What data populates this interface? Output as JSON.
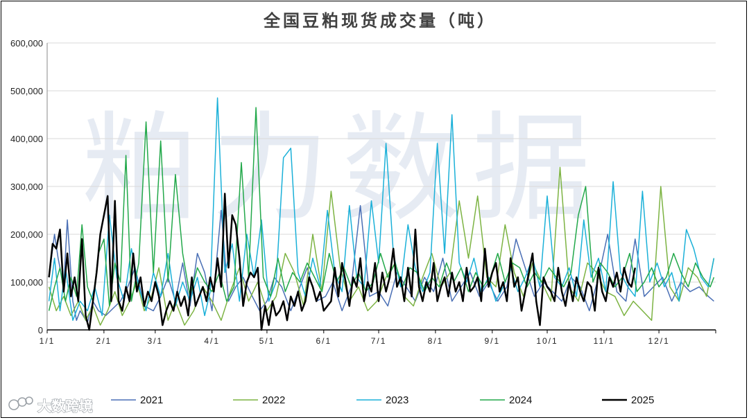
{
  "watermark": "粕力数据",
  "logo_text": "大数跨境",
  "chart_data": {
    "type": "line",
    "title": "全国豆粕现货成交量（吨）",
    "xlabel": "",
    "ylabel": "",
    "ylim": [
      0,
      600000
    ],
    "y_ticks": [
      "0",
      "100,000",
      "200,000",
      "300,000",
      "400,000",
      "500,000",
      "600,000"
    ],
    "x_range_days": [
      0,
      365
    ],
    "x_ticks": [
      {
        "label": "1/1",
        "day": 0
      },
      {
        "label": "2/1",
        "day": 31
      },
      {
        "label": "3/1",
        "day": 59
      },
      {
        "label": "4/1",
        "day": 90
      },
      {
        "label": "5/1",
        "day": 120
      },
      {
        "label": "6/1",
        "day": 151
      },
      {
        "label": "7/1",
        "day": 181
      },
      {
        "label": "8/1",
        "day": 212
      },
      {
        "label": "9/1",
        "day": 243
      },
      {
        "label": "10/1",
        "day": 273
      },
      {
        "label": "11/1",
        "day": 304
      },
      {
        "label": "12/1",
        "day": 334
      }
    ],
    "grid": true,
    "legend_position": "bottom",
    "series": [
      {
        "name": "2021",
        "color": "#4a6fb5",
        "width": 1.5,
        "x": [
          1,
          4,
          6,
          9,
          11,
          14,
          16,
          18,
          22,
          25,
          28,
          32,
          36,
          40,
          44,
          48,
          53,
          58,
          62,
          66,
          70,
          74,
          78,
          82,
          86,
          90,
          95,
          99,
          103,
          107,
          112,
          116,
          120,
          124,
          128,
          133,
          137,
          142,
          147,
          152,
          156,
          161,
          166,
          171,
          176,
          181,
          186,
          191,
          196,
          201,
          206,
          211,
          216,
          221,
          226,
          231,
          236,
          241,
          246,
          251,
          256,
          261,
          266,
          271,
          276,
          281,
          286,
          291,
          296,
          301,
          306,
          311,
          316,
          321,
          326,
          331,
          336,
          341,
          346,
          351,
          356,
          361,
          364
        ],
        "y": [
          110000,
          200000,
          150000,
          90000,
          230000,
          60000,
          20000,
          40000,
          15000,
          60000,
          40000,
          30000,
          45000,
          60000,
          90000,
          130000,
          50000,
          40000,
          70000,
          110000,
          60000,
          140000,
          50000,
          160000,
          120000,
          40000,
          250000,
          60000,
          90000,
          110000,
          70000,
          40000,
          60000,
          110000,
          90000,
          40000,
          80000,
          130000,
          60000,
          70000,
          100000,
          40000,
          90000,
          260000,
          70000,
          80000,
          50000,
          120000,
          90000,
          60000,
          110000,
          80000,
          150000,
          60000,
          90000,
          120000,
          70000,
          100000,
          60000,
          90000,
          190000,
          130000,
          70000,
          100000,
          80000,
          60000,
          110000,
          90000,
          40000,
          110000,
          200000,
          80000,
          60000,
          190000,
          70000,
          90000,
          110000,
          60000,
          100000,
          80000,
          90000,
          70000,
          60000
        ]
      },
      {
        "name": "2022",
        "color": "#7cb342",
        "width": 1.5,
        "x": [
          1,
          5,
          9,
          13,
          17,
          21,
          25,
          29,
          33,
          37,
          41,
          45,
          49,
          53,
          57,
          61,
          66,
          70,
          75,
          80,
          85,
          90,
          95,
          100,
          105,
          110,
          115,
          120,
          125,
          130,
          135,
          140,
          145,
          150,
          155,
          160,
          165,
          170,
          175,
          180,
          185,
          190,
          195,
          200,
          205,
          210,
          215,
          220,
          225,
          230,
          235,
          240,
          245,
          250,
          255,
          260,
          265,
          270,
          275,
          280,
          285,
          290,
          295,
          300,
          305,
          310,
          315,
          320,
          325,
          330,
          335,
          340,
          345,
          350,
          355,
          360,
          364
        ],
        "y": [
          90000,
          40000,
          70000,
          30000,
          60000,
          20000,
          50000,
          10000,
          40000,
          80000,
          30000,
          60000,
          100000,
          40000,
          70000,
          130000,
          20000,
          60000,
          10000,
          40000,
          90000,
          60000,
          20000,
          80000,
          130000,
          60000,
          100000,
          40000,
          70000,
          160000,
          120000,
          50000,
          200000,
          80000,
          290000,
          130000,
          60000,
          90000,
          40000,
          60000,
          110000,
          140000,
          70000,
          50000,
          110000,
          160000,
          90000,
          120000,
          270000,
          150000,
          280000,
          110000,
          90000,
          220000,
          120000,
          70000,
          140000,
          100000,
          60000,
          340000,
          90000,
          60000,
          140000,
          120000,
          80000,
          70000,
          30000,
          60000,
          40000,
          20000,
          300000,
          90000,
          60000,
          130000,
          110000,
          70000,
          150000
        ]
      },
      {
        "name": "2023",
        "color": "#1ab0d8",
        "width": 1.5,
        "x": [
          1,
          4,
          7,
          10,
          14,
          18,
          22,
          26,
          30,
          34,
          38,
          42,
          46,
          50,
          54,
          58,
          62,
          66,
          70,
          74,
          78,
          82,
          86,
          89,
          93,
          97,
          101,
          105,
          109,
          113,
          117,
          121,
          125,
          129,
          133,
          137,
          141,
          145,
          149,
          153,
          157,
          161,
          165,
          169,
          173,
          177,
          181,
          185,
          189,
          193,
          197,
          201,
          205,
          209,
          213,
          217,
          221,
          225,
          229,
          233,
          237,
          241,
          245,
          249,
          253,
          257,
          261,
          265,
          269,
          273,
          277,
          281,
          285,
          289,
          293,
          297,
          301,
          305,
          309,
          313,
          317,
          321,
          325,
          329,
          333,
          337,
          341,
          345,
          349,
          353,
          357,
          361,
          364
        ],
        "y": [
          60000,
          150000,
          40000,
          130000,
          20000,
          60000,
          40000,
          90000,
          30000,
          240000,
          110000,
          60000,
          170000,
          90000,
          40000,
          120000,
          70000,
          160000,
          50000,
          100000,
          60000,
          110000,
          30000,
          80000,
          485000,
          120000,
          180000,
          60000,
          200000,
          110000,
          230000,
          60000,
          100000,
          360000,
          380000,
          120000,
          70000,
          150000,
          90000,
          250000,
          120000,
          80000,
          260000,
          110000,
          90000,
          270000,
          140000,
          390000,
          160000,
          90000,
          220000,
          130000,
          80000,
          120000,
          390000,
          160000,
          450000,
          140000,
          100000,
          150000,
          80000,
          110000,
          60000,
          90000,
          130000,
          80000,
          110000,
          150000,
          90000,
          280000,
          110000,
          90000,
          130000,
          70000,
          230000,
          110000,
          150000,
          80000,
          310000,
          120000,
          90000,
          70000,
          290000,
          100000,
          140000,
          90000,
          120000,
          60000,
          210000,
          170000,
          110000,
          90000,
          150000
        ]
      },
      {
        "name": "2024",
        "color": "#22a84a",
        "width": 1.5,
        "x": [
          1,
          4,
          7,
          10,
          13,
          16,
          19,
          22,
          25,
          28,
          31,
          34,
          37,
          40,
          43,
          46,
          50,
          54,
          58,
          62,
          66,
          70,
          74,
          78,
          82,
          86,
          90,
          94,
          98,
          102,
          106,
          110,
          114,
          118,
          122,
          126,
          130,
          134,
          138,
          142,
          146,
          150,
          154,
          158,
          162,
          166,
          170,
          174,
          178,
          182,
          186,
          190,
          194,
          198,
          202,
          206,
          210,
          214,
          218,
          222,
          226,
          230,
          234,
          238,
          242,
          246,
          250,
          254,
          258,
          262,
          266,
          270,
          274,
          278,
          282,
          286,
          290,
          294,
          298,
          302,
          306,
          310,
          314,
          318,
          322,
          326,
          330,
          334,
          338,
          342,
          346,
          350,
          354,
          358,
          362,
          364
        ],
        "y": [
          40000,
          90000,
          130000,
          60000,
          110000,
          70000,
          220000,
          90000,
          60000,
          160000,
          190000,
          50000,
          140000,
          100000,
          365000,
          60000,
          140000,
          435000,
          120000,
          395000,
          100000,
          325000,
          160000,
          70000,
          130000,
          100000,
          80000,
          120000,
          60000,
          90000,
          350000,
          110000,
          465000,
          110000,
          70000,
          150000,
          80000,
          120000,
          100000,
          140000,
          110000,
          80000,
          160000,
          100000,
          130000,
          90000,
          120000,
          80000,
          100000,
          160000,
          110000,
          140000,
          90000,
          130000,
          120000,
          80000,
          110000,
          90000,
          140000,
          100000,
          130000,
          80000,
          120000,
          90000,
          110000,
          160000,
          100000,
          140000,
          130000,
          90000,
          120000,
          100000,
          130000,
          110000,
          90000,
          120000,
          240000,
          300000,
          100000,
          140000,
          120000,
          90000,
          110000,
          160000,
          80000,
          100000,
          130000,
          90000,
          110000,
          160000,
          120000,
          90000,
          140000,
          110000,
          90000,
          110000
        ]
      },
      {
        "name": "2025",
        "color": "#000000",
        "width": 2.5,
        "x": [
          1,
          3,
          5,
          7,
          9,
          11,
          13,
          15,
          17,
          19,
          21,
          23,
          25,
          27,
          29,
          31,
          33,
          35,
          37,
          39,
          41,
          43,
          45,
          47,
          49,
          51,
          53,
          55,
          57,
          59,
          61,
          63,
          65,
          67,
          69,
          71,
          73,
          75,
          77,
          79,
          81,
          83,
          85,
          87,
          89,
          91,
          93,
          95,
          97,
          99,
          101,
          103,
          105,
          107,
          109,
          111,
          113,
          115,
          117,
          119,
          121,
          123,
          125,
          127,
          129,
          131,
          133,
          135,
          137,
          139,
          141,
          143,
          145,
          147,
          149,
          151,
          153,
          155,
          157,
          159,
          161,
          163,
          165,
          167,
          169,
          171,
          173,
          175,
          177,
          179,
          181,
          183,
          185,
          187,
          189,
          191,
          193,
          195,
          197,
          199,
          201,
          203,
          205,
          207,
          209,
          211,
          213,
          215,
          217,
          219,
          221,
          223,
          225,
          227,
          229,
          231,
          233,
          235,
          237,
          239,
          241,
          243,
          245,
          247,
          249,
          251,
          253,
          255,
          257,
          259,
          261,
          263,
          265,
          267,
          269,
          271,
          273,
          275,
          277,
          279,
          281,
          283,
          285,
          287,
          289,
          291,
          293,
          295,
          297,
          299,
          301,
          303,
          305,
          307,
          309,
          311,
          313,
          315,
          317,
          319,
          321
        ],
        "y": [
          110000,
          180000,
          170000,
          210000,
          80000,
          160000,
          70000,
          110000,
          60000,
          190000,
          30000,
          0,
          60000,
          120000,
          200000,
          240000,
          280000,
          60000,
          270000,
          60000,
          40000,
          90000,
          60000,
          160000,
          80000,
          110000,
          50000,
          80000,
          60000,
          100000,
          70000,
          10000,
          40000,
          60000,
          40000,
          80000,
          50000,
          70000,
          30000,
          110000,
          50000,
          70000,
          90000,
          60000,
          110000,
          80000,
          150000,
          90000,
          285000,
          130000,
          240000,
          220000,
          150000,
          50000,
          100000,
          120000,
          110000,
          130000,
          0,
          50000,
          10000,
          60000,
          30000,
          40000,
          60000,
          20000,
          70000,
          50000,
          80000,
          40000,
          60000,
          110000,
          90000,
          60000,
          80000,
          40000,
          50000,
          60000,
          130000,
          70000,
          140000,
          100000,
          50000,
          110000,
          90000,
          150000,
          60000,
          100000,
          80000,
          140000,
          60000,
          120000,
          80000,
          110000,
          170000,
          90000,
          110000,
          60000,
          130000,
          70000,
          210000,
          90000,
          60000,
          100000,
          80000,
          140000,
          60000,
          90000,
          110000,
          70000,
          120000,
          80000,
          100000,
          60000,
          130000,
          80000,
          90000,
          110000,
          60000,
          170000,
          90000,
          120000,
          140000,
          80000,
          100000,
          60000,
          150000,
          90000,
          110000,
          40000,
          80000,
          120000,
          160000,
          60000,
          10000,
          110000,
          90000,
          80000,
          60000,
          130000,
          80000,
          50000,
          100000,
          60000,
          110000,
          80000,
          60000,
          100000,
          90000,
          40000,
          130000,
          80000,
          60000,
          110000,
          90000,
          120000,
          80000,
          130000,
          100000,
          90000,
          130000
        ]
      }
    ]
  }
}
